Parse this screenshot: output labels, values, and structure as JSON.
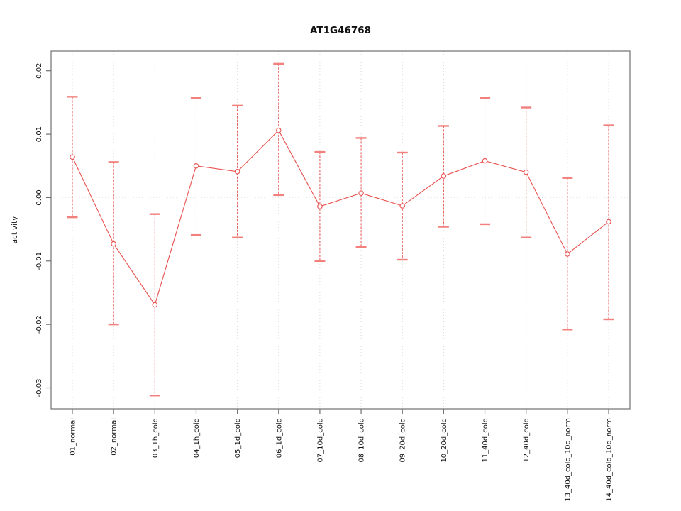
{
  "window": {
    "background": "#ffffff"
  },
  "chart_data": {
    "type": "line",
    "title": "AT1G46768",
    "ylabel": "activity",
    "xlabel": "",
    "legend": "none",
    "categories": [
      "01_normal",
      "02_normal",
      "03_1h_cold",
      "04_1h_cold",
      "05_1d_cold",
      "06_1d_cold",
      "07_10d_cold",
      "08_10d_cold",
      "09_20d_cold",
      "10_20d_cold",
      "11_40d_cold",
      "12_40d_cold",
      "13_40d_cold_10d_norm",
      "14_40d_cold_10d_norm"
    ],
    "series": [
      {
        "name": "activity",
        "marker": "open-circle",
        "color": "#e8504d",
        "values": [
          0.0064,
          -0.0073,
          -0.0169,
          0.005,
          0.0041,
          0.0106,
          -0.0014,
          0.0007,
          -0.0013,
          0.0034,
          0.0058,
          0.004,
          -0.0089,
          -0.0038
        ],
        "error_high": [
          0.0159,
          0.0056,
          -0.0026,
          0.0157,
          0.0145,
          0.0211,
          0.0072,
          0.0094,
          0.0071,
          0.0113,
          0.0157,
          0.0142,
          0.0031,
          0.0114
        ],
        "error_low": [
          -0.0031,
          -0.02,
          -0.0312,
          -0.0059,
          -0.0063,
          0.0004,
          -0.01,
          -0.0078,
          -0.0098,
          -0.0046,
          -0.0042,
          -0.0063,
          -0.0208,
          -0.0192
        ]
      }
    ],
    "ylim": [
      -0.0333,
      0.0231
    ],
    "yticks": [
      {
        "value": 0.02,
        "label": "0.02"
      },
      {
        "value": 0.01,
        "label": "0.01"
      },
      {
        "value": 0.0,
        "label": "0.00"
      },
      {
        "value": -0.01,
        "label": "-0.01"
      },
      {
        "value": -0.02,
        "label": "-0.02"
      },
      {
        "value": -0.03,
        "label": "-0.03"
      }
    ],
    "grid": {
      "vertical_dotted": true,
      "horizontal_zero_dotted": true
    },
    "colors": {
      "series": "#e8504d",
      "error_cap": "#f2807d",
      "grid": "#d8d8d8",
      "zero_line": "#e2e2e2",
      "frame": "#707070",
      "text": "#111111"
    }
  }
}
